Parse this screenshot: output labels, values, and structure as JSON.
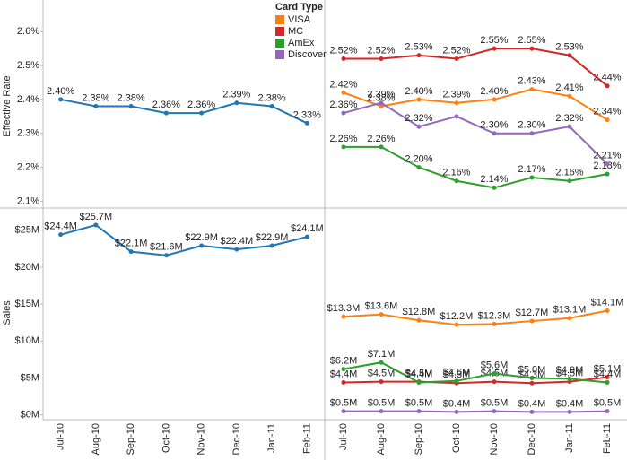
{
  "chart_data": [
    {
      "type": "line",
      "y_label": "Effective Rate",
      "color": "#1f77b4",
      "values": [
        2.4,
        2.38,
        2.38,
        2.36,
        2.36,
        2.39,
        2.38,
        2.33
      ],
      "value_labels": [
        "2.40%",
        "2.38%",
        "2.38%",
        "2.36%",
        "2.36%",
        "2.39%",
        "2.38%",
        "2.33%"
      ],
      "ylim": [
        2.08,
        2.68
      ],
      "yticks": [
        {
          "value": 2.1,
          "label": "2.1%"
        },
        {
          "value": 2.2,
          "label": "2.2%"
        },
        {
          "value": 2.3,
          "label": "2.3%"
        },
        {
          "value": 2.4,
          "label": "2.4%"
        },
        {
          "value": 2.5,
          "label": "2.5%"
        },
        {
          "value": 2.6,
          "label": "2.6%"
        }
      ]
    },
    {
      "type": "line",
      "legend_title": "Card Type",
      "ylim": [
        2.08,
        2.68
      ],
      "series": [
        {
          "name": "VISA",
          "color": "#ff7f0e",
          "values": [
            2.42,
            2.38,
            2.4,
            2.39,
            2.4,
            2.43,
            2.41,
            2.34
          ],
          "value_labels": [
            "2.42%",
            "2.38%",
            "2.40%",
            "2.39%",
            "2.40%",
            "2.43%",
            "2.41%",
            "2.34%"
          ]
        },
        {
          "name": "MC",
          "color": "#d62728",
          "values": [
            2.52,
            2.52,
            2.53,
            2.52,
            2.55,
            2.55,
            2.53,
            2.44
          ],
          "value_labels": [
            "2.52%",
            "2.52%",
            "2.53%",
            "2.52%",
            "2.55%",
            "2.55%",
            "2.53%",
            "2.44%"
          ]
        },
        {
          "name": "AmEx",
          "color": "#2ca02c",
          "values": [
            2.26,
            2.26,
            2.2,
            2.16,
            2.14,
            2.17,
            2.16,
            2.18
          ],
          "value_labels": [
            "2.26%",
            "2.26%",
            "2.20%",
            "2.16%",
            "2.14%",
            "2.17%",
            "2.16%",
            "2.18%"
          ]
        },
        {
          "name": "Discover",
          "color": "#9467bd",
          "values": [
            2.36,
            2.39,
            2.32,
            2.35,
            2.3,
            2.3,
            2.32,
            2.21
          ],
          "value_labels": [
            "2.36%",
            "2.39%",
            "2.32%",
            null,
            "2.30%",
            "2.30%",
            "2.32%",
            "2.21%"
          ]
        }
      ]
    },
    {
      "type": "line",
      "y_label": "Sales",
      "color": "#1f77b4",
      "categories": [
        "Jul-10",
        "Aug-10",
        "Sep-10",
        "Oct-10",
        "Nov-10",
        "Dec-10",
        "Jan-11",
        "Feb-11"
      ],
      "values": [
        24.4,
        25.7,
        22.1,
        21.6,
        22.9,
        22.4,
        22.9,
        24.1
      ],
      "value_labels": [
        "$24.4M",
        "$25.7M",
        "$22.1M",
        "$21.6M",
        "$22.9M",
        "$22.4M",
        "$22.9M",
        "$24.1M"
      ],
      "ylim": [
        -0.4,
        28
      ],
      "yticks": [
        {
          "value": 0,
          "label": "$0M"
        },
        {
          "value": 5,
          "label": "$5M"
        },
        {
          "value": 10,
          "label": "$10M"
        },
        {
          "value": 15,
          "label": "$15M"
        },
        {
          "value": 20,
          "label": "$20M"
        },
        {
          "value": 25,
          "label": "$25M"
        }
      ]
    },
    {
      "type": "line",
      "ylim": [
        -0.4,
        28
      ],
      "categories": [
        "Jul-10",
        "Aug-10",
        "Sep-10",
        "Oct-10",
        "Nov-10",
        "Dec-10",
        "Jan-11",
        "Feb-11"
      ],
      "series": [
        {
          "name": "VISA",
          "color": "#ff7f0e",
          "values": [
            13.3,
            13.6,
            12.8,
            12.2,
            12.3,
            12.7,
            13.1,
            14.1
          ],
          "value_labels": [
            "$13.3M",
            "$13.6M",
            "$12.8M",
            "$12.2M",
            "$12.3M",
            "$12.7M",
            "$13.1M",
            "$14.1M"
          ]
        },
        {
          "name": "MC",
          "color": "#d62728",
          "values": [
            4.4,
            4.5,
            4.5,
            4.3,
            4.5,
            4.3,
            4.5,
            5.1
          ],
          "value_labels": [
            "$4.4M",
            "$4.5M",
            "$4.5M",
            "$4.3M",
            "$4.5M",
            "$4.3M",
            "$4.5M",
            "$5.1M"
          ]
        },
        {
          "name": "AmEx",
          "color": "#2ca02c",
          "values": [
            6.2,
            7.1,
            4.4,
            4.6,
            5.6,
            5.0,
            4.9,
            4.4
          ],
          "value_labels": [
            "$6.2M",
            "$7.1M",
            "$4.4M",
            "$4.6M",
            "$5.6M",
            "$5.0M",
            "$4.9M",
            "$4.4M"
          ]
        },
        {
          "name": "Discover",
          "color": "#9467bd",
          "values": [
            0.5,
            0.5,
            0.5,
            0.4,
            0.5,
            0.4,
            0.4,
            0.5
          ],
          "value_labels": [
            "$0.5M",
            "$0.5M",
            "$0.5M",
            "$0.4M",
            "$0.5M",
            "$0.4M",
            "$0.4M",
            "$0.5M"
          ]
        }
      ]
    }
  ]
}
